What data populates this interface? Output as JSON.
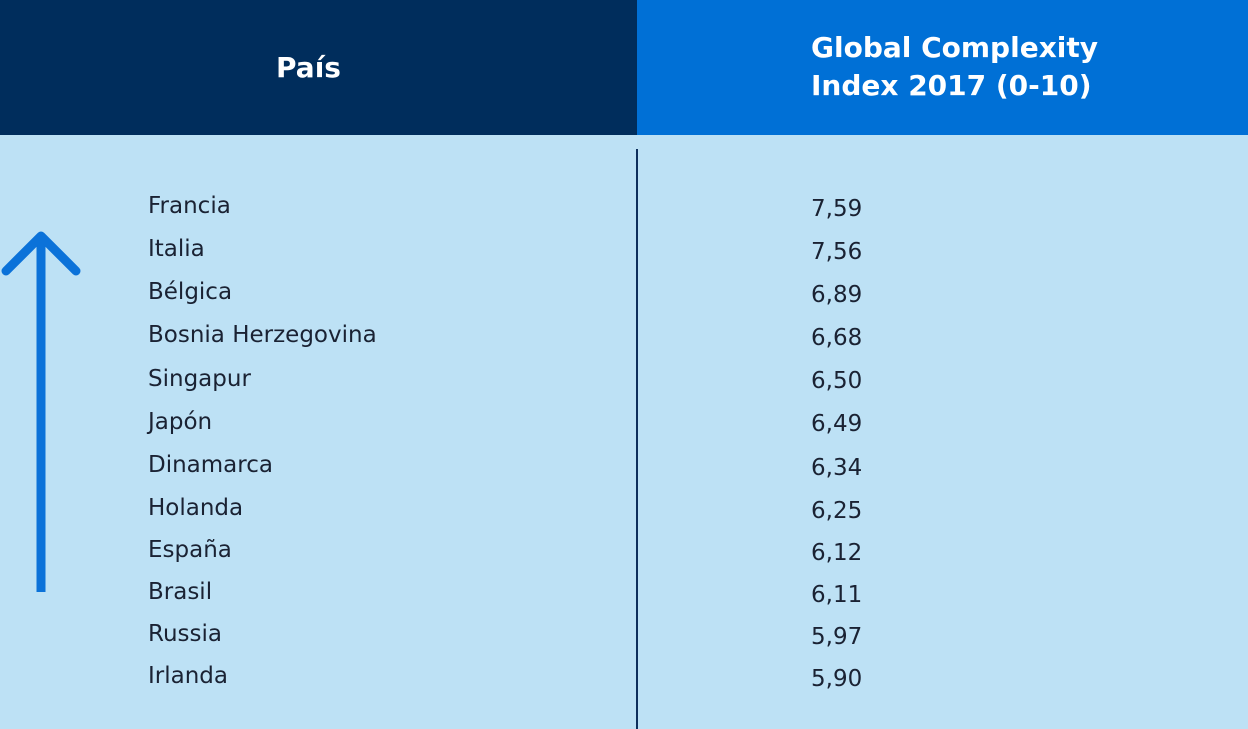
{
  "header": {
    "country_label": "País",
    "index_label": "Global Complexity Index 2017 (0-10)"
  },
  "colors": {
    "background": "#bde1f5",
    "header_left": "#002d5c",
    "header_right": "#0070d6",
    "arrow": "#0b72d9"
  },
  "arrow_icon": "arrow-up-icon",
  "rows": [
    {
      "country": "Francia",
      "value": "7,59"
    },
    {
      "country": "Italia",
      "value": "7,56"
    },
    {
      "country": "Bélgica",
      "value": "6,89"
    },
    {
      "country": "Bosnia Herzegovina",
      "value": "6,68"
    },
    {
      "country": "Singapur",
      "value": "6,50"
    },
    {
      "country": "Japón",
      "value": "6,49"
    },
    {
      "country": "Dinamarca",
      "value": "6,34"
    },
    {
      "country": "Holanda",
      "value": "6,25"
    },
    {
      "country": "España",
      "value": "6,12"
    },
    {
      "country": "Brasil",
      "value": "6,11"
    },
    {
      "country": "Russia",
      "value": "5,97"
    },
    {
      "country": "Irlanda",
      "value": "5,90"
    }
  ],
  "chart_data": {
    "type": "table",
    "columns": [
      "País",
      "Global Complexity Index 2017 (0-10)"
    ],
    "categories": [
      "Francia",
      "Italia",
      "Bélgica",
      "Bosnia Herzegovina",
      "Singapur",
      "Japón",
      "Dinamarca",
      "Holanda",
      "España",
      "Brasil",
      "Russia",
      "Irlanda"
    ],
    "values": [
      7.59,
      7.56,
      6.89,
      6.68,
      6.5,
      6.49,
      6.34,
      6.25,
      6.12,
      6.11,
      5.97,
      5.9
    ]
  }
}
